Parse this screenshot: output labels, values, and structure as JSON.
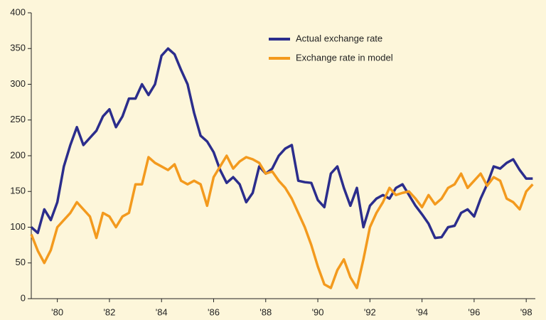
{
  "chart_data": {
    "type": "line",
    "x": [
      1979,
      1979.25,
      1979.5,
      1979.75,
      1980,
      1980.25,
      1980.5,
      1980.75,
      1981,
      1981.25,
      1981.5,
      1981.75,
      1982,
      1982.25,
      1982.5,
      1982.75,
      1983,
      1983.25,
      1983.5,
      1983.75,
      1984,
      1984.25,
      1984.5,
      1984.75,
      1985,
      1985.25,
      1985.5,
      1985.75,
      1986,
      1986.25,
      1986.5,
      1986.75,
      1987,
      1987.25,
      1987.5,
      1987.75,
      1988,
      1988.25,
      1988.5,
      1988.75,
      1989,
      1989.25,
      1989.5,
      1989.75,
      1990,
      1990.25,
      1990.5,
      1990.75,
      1991,
      1991.25,
      1991.5,
      1991.75,
      1992,
      1992.25,
      1992.5,
      1992.75,
      1993,
      1993.25,
      1993.5,
      1993.75,
      1994,
      1994.25,
      1994.5,
      1994.75,
      1995,
      1995.25,
      1995.5,
      1995.75,
      1996,
      1996.25,
      1996.5,
      1996.75,
      1997,
      1997.25,
      1997.5,
      1997.75,
      1998,
      1998.25
    ],
    "series": [
      {
        "name": "Actual exchange rate",
        "color": "#2b2d8c",
        "values": [
          100,
          92,
          125,
          110,
          135,
          185,
          215,
          240,
          215,
          225,
          235,
          255,
          265,
          240,
          255,
          280,
          280,
          300,
          285,
          300,
          340,
          350,
          342,
          320,
          300,
          260,
          228,
          220,
          205,
          180,
          162,
          170,
          160,
          135,
          148,
          185,
          175,
          182,
          200,
          210,
          215,
          165,
          163,
          162,
          138,
          128,
          175,
          185,
          155,
          130,
          155,
          100,
          130,
          140,
          145,
          140,
          155,
          160,
          145,
          130,
          118,
          105,
          85,
          86,
          100,
          102,
          120,
          125,
          115,
          140,
          160,
          185,
          182,
          190,
          195,
          180,
          168,
          168
        ]
      },
      {
        "name": "Exchange rate in model",
        "color": "#f39a1e",
        "values": [
          90,
          67,
          50,
          68,
          100,
          110,
          120,
          135,
          125,
          115,
          85,
          120,
          115,
          100,
          115,
          120,
          160,
          160,
          198,
          190,
          185,
          180,
          188,
          165,
          160,
          165,
          160,
          130,
          170,
          185,
          200,
          182,
          192,
          198,
          195,
          190,
          175,
          178,
          165,
          155,
          140,
          120,
          100,
          75,
          45,
          20,
          15,
          40,
          55,
          30,
          15,
          55,
          100,
          120,
          135,
          155,
          145,
          148,
          150,
          140,
          128,
          145,
          132,
          140,
          155,
          160,
          175,
          155,
          165,
          175,
          158,
          170,
          165,
          140,
          135,
          125,
          150,
          160
        ]
      }
    ],
    "xlim": [
      1979,
      1998.35
    ],
    "xticks": [
      {
        "value": 1980,
        "label": "'80"
      },
      {
        "value": 1982,
        "label": "'82"
      },
      {
        "value": 1984,
        "label": "'84"
      },
      {
        "value": 1986,
        "label": "'86"
      },
      {
        "value": 1988,
        "label": "'88"
      },
      {
        "value": 1990,
        "label": "'90"
      },
      {
        "value": 1992,
        "label": "'92"
      },
      {
        "value": 1994,
        "label": "'94"
      },
      {
        "value": 1996,
        "label": "'96"
      },
      {
        "value": 1998,
        "label": "'98"
      }
    ],
    "ylim": [
      0,
      400
    ],
    "yticks": [
      0,
      50,
      100,
      150,
      200,
      250,
      300,
      350,
      400
    ],
    "grid": false,
    "legend_position": "top"
  }
}
